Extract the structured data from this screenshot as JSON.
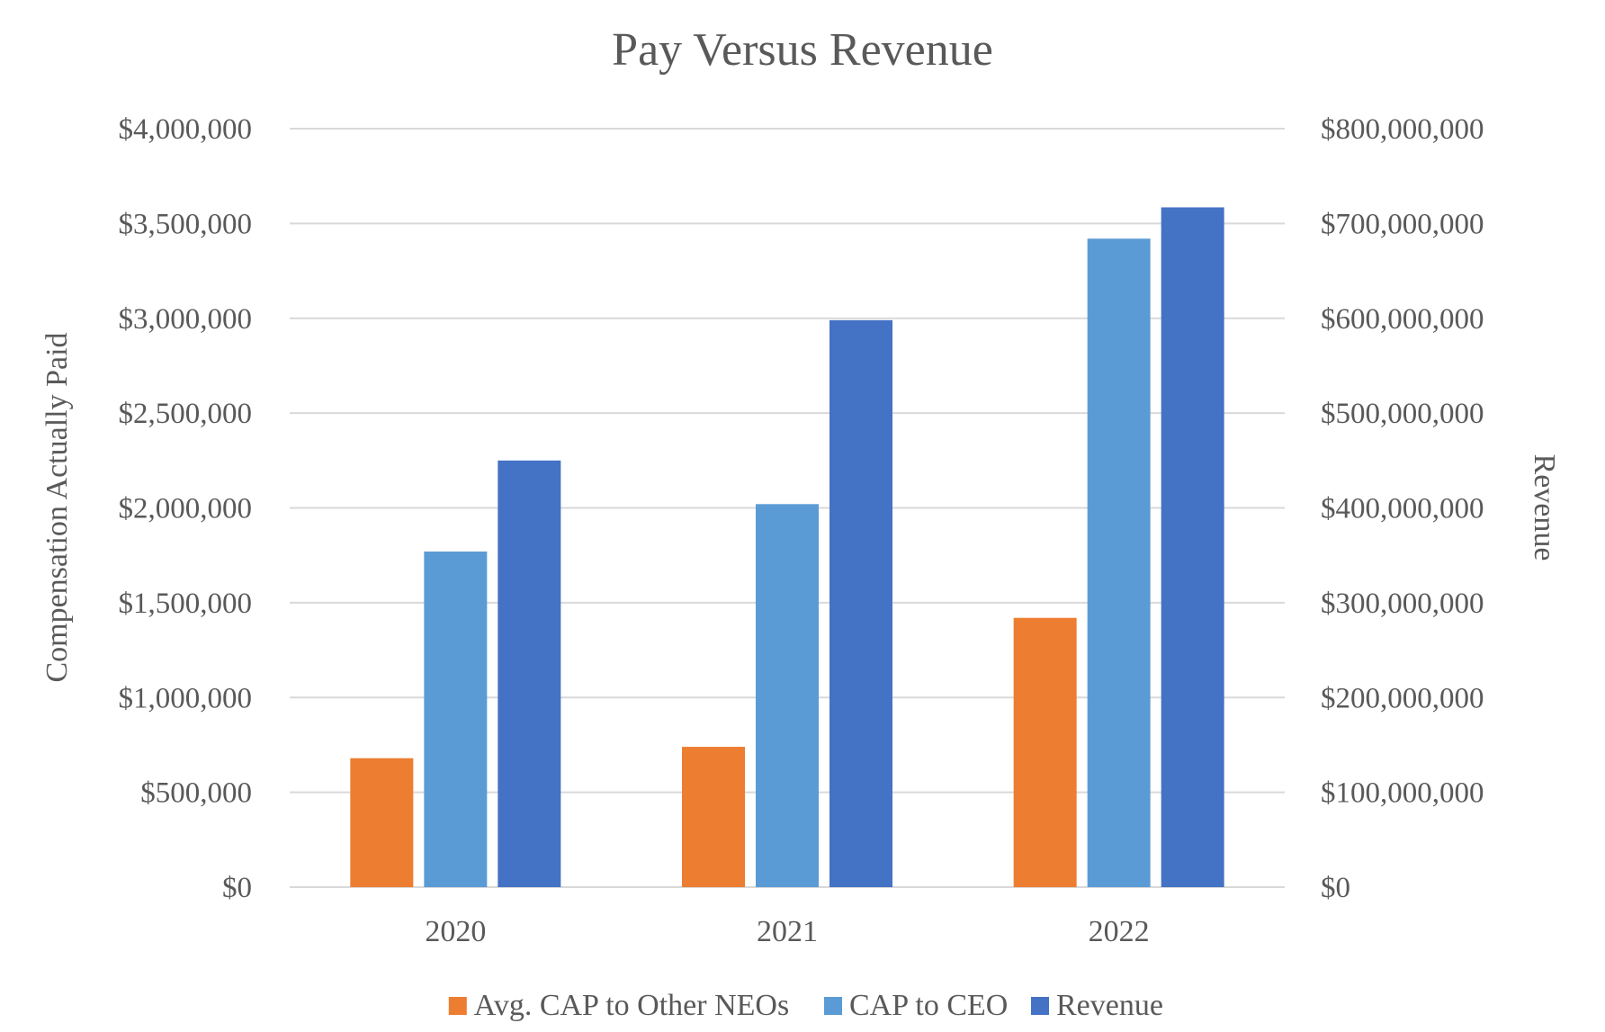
{
  "chart_data": {
    "type": "bar",
    "title": "Pay Versus Revenue",
    "categories": [
      "2020",
      "2021",
      "2022"
    ],
    "series": [
      {
        "name": "Avg. CAP to Other NEOs",
        "axis": "left",
        "color": "#ED7D31",
        "values": [
          680000,
          740000,
          1420000
        ]
      },
      {
        "name": "CAP to CEO",
        "axis": "left",
        "color": "#5B9BD5",
        "values": [
          1770000,
          2020000,
          3420000
        ]
      },
      {
        "name": "Revenue",
        "axis": "right",
        "color": "#4472C4",
        "values": [
          450000000,
          598000000,
          717000000
        ]
      }
    ],
    "ylabel": "Compensation Actually Paid",
    "y2label": "Revenue",
    "ylim": [
      0,
      4000000
    ],
    "y2lim": [
      0,
      800000000
    ],
    "yticks": [
      "$0",
      "$500,000",
      "$1,000,000",
      "$1,500,000",
      "$2,000,000",
      "$2,500,000",
      "$3,000,000",
      "$3,500,000",
      "$4,000,000"
    ],
    "y2ticks": [
      "$0",
      "$100,000,000",
      "$200,000,000",
      "$300,000,000",
      "$400,000,000",
      "$500,000,000",
      "$600,000,000",
      "$700,000,000",
      "$800,000,000"
    ],
    "grid": true,
    "legend": "bottom"
  }
}
